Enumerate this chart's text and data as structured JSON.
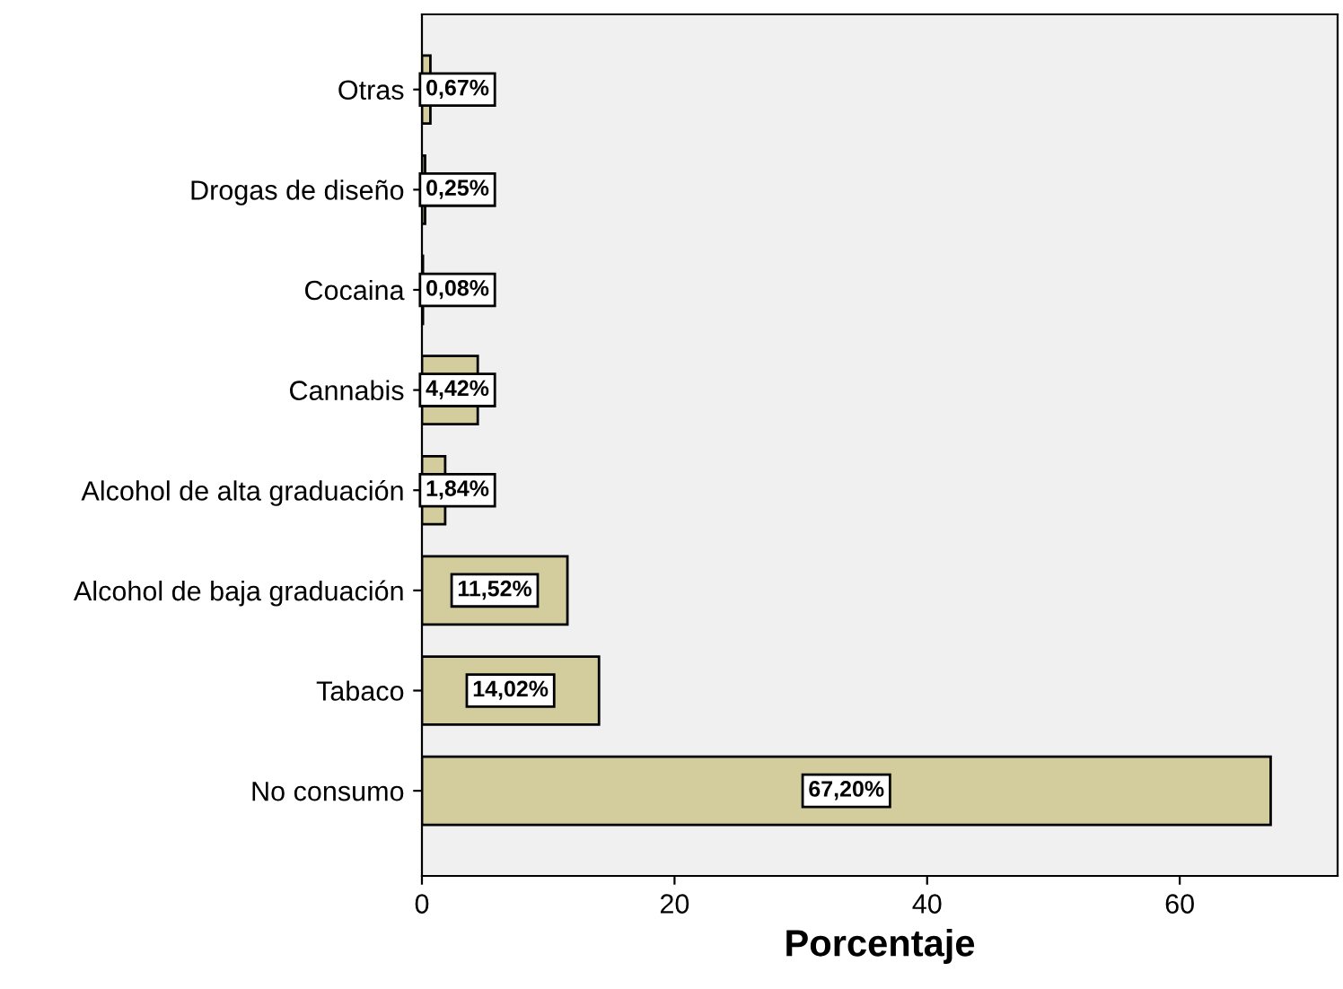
{
  "chart_data": {
    "type": "bar",
    "orientation": "horizontal",
    "xlabel": "Porcentaje",
    "categories": [
      "Otras",
      "Drogas de diseño",
      "Cocaina",
      "Cannabis",
      "Alcohol de alta graduación",
      "Alcohol de baja graduación",
      "Tabaco",
      "No consumo"
    ],
    "values": [
      0.67,
      0.25,
      0.08,
      4.42,
      1.84,
      11.52,
      14.02,
      67.2
    ],
    "value_labels": [
      "0,67%",
      "0,25%",
      "0,08%",
      "4,42%",
      "1,84%",
      "11,52%",
      "14,02%",
      "67,20%"
    ],
    "color": "#d3cd9e",
    "xlim": [
      0,
      72.5
    ],
    "xticks": [
      0,
      20,
      40,
      60
    ],
    "grid": false,
    "legend": false
  }
}
